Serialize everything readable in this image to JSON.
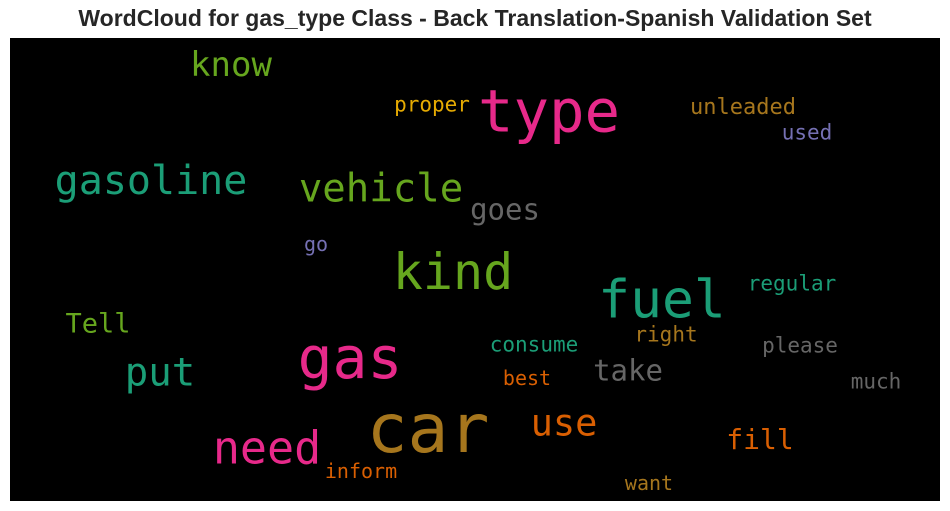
{
  "chart_data": {
    "type": "wordcloud",
    "title": "WordCloud for gas_type Class - Back Translation-Spanish Validation Set",
    "background": "#000000",
    "words": [
      {
        "text": "car",
        "weight": 1.0,
        "color": "#a6761d"
      },
      {
        "text": "type",
        "weight": 0.86,
        "color": "#e7298a"
      },
      {
        "text": "gas",
        "weight": 0.85,
        "color": "#e7298a"
      },
      {
        "text": "fuel",
        "weight": 0.78,
        "color": "#1b9e77"
      },
      {
        "text": "kind",
        "weight": 0.75,
        "color": "#66a61e"
      },
      {
        "text": "need",
        "weight": 0.68,
        "color": "#e7298a"
      },
      {
        "text": "gasoline",
        "weight": 0.6,
        "color": "#1b9e77"
      },
      {
        "text": "vehicle",
        "weight": 0.58,
        "color": "#66a61e"
      },
      {
        "text": "put",
        "weight": 0.58,
        "color": "#1b9e77"
      },
      {
        "text": "use",
        "weight": 0.55,
        "color": "#d95f02"
      },
      {
        "text": "know",
        "weight": 0.5,
        "color": "#66a61e"
      },
      {
        "text": "goes",
        "weight": 0.42,
        "color": "#666666"
      },
      {
        "text": "take",
        "weight": 0.42,
        "color": "#666666"
      },
      {
        "text": "fill",
        "weight": 0.42,
        "color": "#d95f02"
      },
      {
        "text": "Tell",
        "weight": 0.4,
        "color": "#66a61e"
      },
      {
        "text": "unleaded",
        "weight": 0.33,
        "color": "#a6761d"
      },
      {
        "text": "used",
        "weight": 0.32,
        "color": "#7570b3"
      },
      {
        "text": "proper",
        "weight": 0.32,
        "color": "#e6ab02"
      },
      {
        "text": "regular",
        "weight": 0.32,
        "color": "#1b9e77"
      },
      {
        "text": "consume",
        "weight": 0.32,
        "color": "#1b9e77"
      },
      {
        "text": "right",
        "weight": 0.32,
        "color": "#a6761d"
      },
      {
        "text": "please",
        "weight": 0.32,
        "color": "#666666"
      },
      {
        "text": "much",
        "weight": 0.32,
        "color": "#666666"
      },
      {
        "text": "best",
        "weight": 0.31,
        "color": "#d95f02"
      },
      {
        "text": "inform",
        "weight": 0.31,
        "color": "#d95f02"
      },
      {
        "text": "want",
        "weight": 0.31,
        "color": "#a6761d"
      },
      {
        "text": "go",
        "weight": 0.3,
        "color": "#7570b3"
      }
    ]
  }
}
